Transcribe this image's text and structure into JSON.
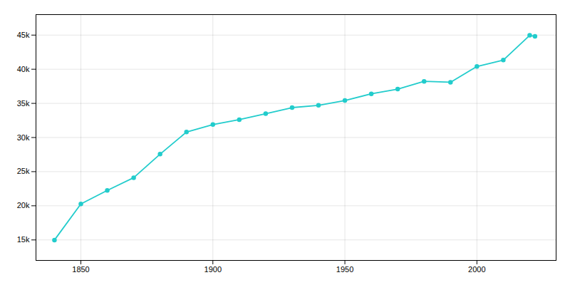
{
  "chart_data": {
    "type": "line",
    "x": [
      1840,
      1850,
      1860,
      1870,
      1880,
      1890,
      1900,
      1910,
      1920,
      1930,
      1940,
      1950,
      1960,
      1970,
      1980,
      1990,
      2000,
      2010,
      2020,
      2022
    ],
    "values": [
      14985,
      20264,
      22252,
      24117,
      27563,
      30801,
      31895,
      32617,
      33490,
      34381,
      34709,
      35418,
      36394,
      37084,
      38220,
      38091,
      40407,
      41340,
      44966,
      44816
    ],
    "color": "#22cccc",
    "marker": "circle",
    "xlim": [
      1833,
      2030
    ],
    "ylim": [
      12000,
      48000
    ],
    "xticks": [
      1850,
      1900,
      1950,
      2000
    ],
    "yticks": [
      {
        "value": 15000,
        "label": "15k"
      },
      {
        "value": 20000,
        "label": "20k"
      },
      {
        "value": 25000,
        "label": "25k"
      },
      {
        "value": 30000,
        "label": "30k"
      },
      {
        "value": 35000,
        "label": "35k"
      },
      {
        "value": 40000,
        "label": "40k"
      },
      {
        "value": 45000,
        "label": "45k"
      }
    ],
    "grid": true
  }
}
